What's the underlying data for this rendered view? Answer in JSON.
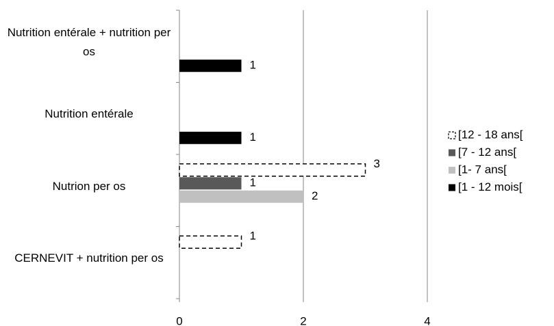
{
  "chart_data": {
    "type": "bar",
    "orientation": "horizontal",
    "categories": [
      "CERNEVIT + nutrition per os",
      "Nutrion per os",
      "Nutrition entérale",
      "Nutrition entérale + nutrition per os"
    ],
    "series": [
      {
        "name": "[1 - 12 mois[",
        "color": "#000000",
        "values": [
          null,
          null,
          1,
          1
        ]
      },
      {
        "name": "[1- 7 ans[",
        "color": "#c0c0c0",
        "values": [
          null,
          2,
          null,
          null
        ]
      },
      {
        "name": "[7 - 12 ans[",
        "color": "#595959",
        "values": [
          null,
          1,
          null,
          null
        ]
      },
      {
        "name": "[12 - 18 ans[",
        "color": "#ffffff",
        "dashed": true,
        "values": [
          1,
          3,
          null,
          null
        ]
      }
    ],
    "xlim": [
      0,
      4
    ],
    "xticks": [
      0,
      2,
      4
    ],
    "grid": true,
    "legend": "right"
  }
}
